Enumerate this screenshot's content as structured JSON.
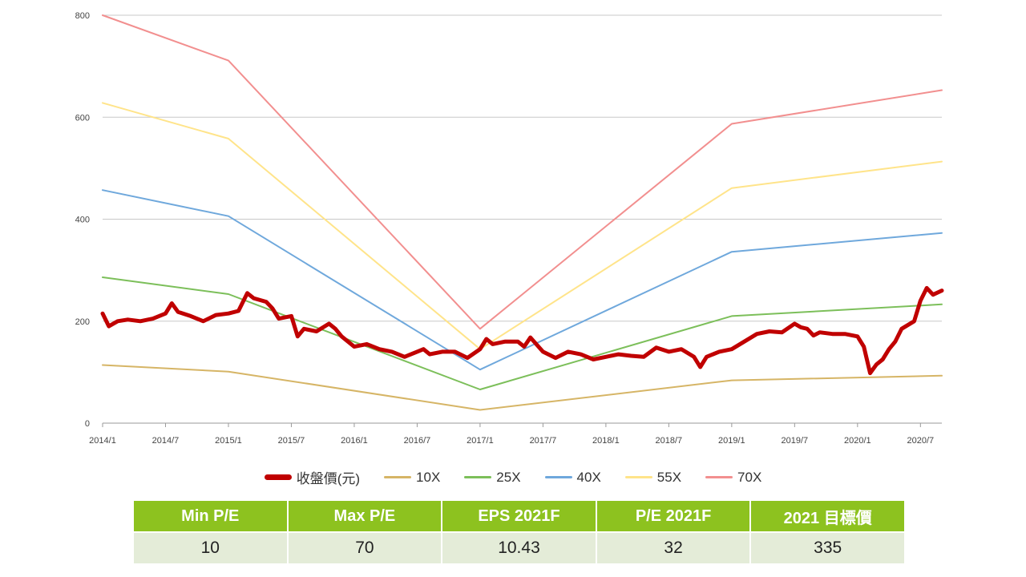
{
  "chart_data": {
    "type": "line",
    "x_ticks": [
      "2014/1",
      "2014/7",
      "2015/1",
      "2015/7",
      "2016/1",
      "2016/7",
      "2017/1",
      "2017/7",
      "2018/1",
      "2018/7",
      "2019/1",
      "2019/7",
      "2020/1",
      "2020/7"
    ],
    "y_ticks": [
      0,
      200,
      400,
      600,
      800
    ],
    "ylim": [
      0,
      800
    ],
    "xlim": [
      2014.0,
      2020.67
    ],
    "grid": true,
    "legend_position": "bottom",
    "series": [
      {
        "name": "收盤價(元)",
        "color": "#c00000",
        "points": [
          [
            2014.0,
            215
          ],
          [
            2014.05,
            190
          ],
          [
            2014.12,
            200
          ],
          [
            2014.2,
            203
          ],
          [
            2014.3,
            200
          ],
          [
            2014.4,
            205
          ],
          [
            2014.5,
            215
          ],
          [
            2014.55,
            235
          ],
          [
            2014.6,
            218
          ],
          [
            2014.7,
            210
          ],
          [
            2014.8,
            200
          ],
          [
            2014.9,
            212
          ],
          [
            2015.0,
            215
          ],
          [
            2015.08,
            220
          ],
          [
            2015.15,
            255
          ],
          [
            2015.2,
            245
          ],
          [
            2015.3,
            238
          ],
          [
            2015.35,
            225
          ],
          [
            2015.4,
            205
          ],
          [
            2015.5,
            210
          ],
          [
            2015.55,
            170
          ],
          [
            2015.6,
            185
          ],
          [
            2015.7,
            180
          ],
          [
            2015.8,
            195
          ],
          [
            2015.85,
            185
          ],
          [
            2015.9,
            170
          ],
          [
            2016.0,
            150
          ],
          [
            2016.1,
            155
          ],
          [
            2016.2,
            145
          ],
          [
            2016.3,
            140
          ],
          [
            2016.4,
            130
          ],
          [
            2016.5,
            140
          ],
          [
            2016.55,
            145
          ],
          [
            2016.6,
            135
          ],
          [
            2016.7,
            140
          ],
          [
            2016.8,
            140
          ],
          [
            2016.9,
            128
          ],
          [
            2017.0,
            145
          ],
          [
            2017.05,
            165
          ],
          [
            2017.1,
            155
          ],
          [
            2017.2,
            160
          ],
          [
            2017.3,
            160
          ],
          [
            2017.35,
            150
          ],
          [
            2017.4,
            168
          ],
          [
            2017.5,
            140
          ],
          [
            2017.6,
            128
          ],
          [
            2017.7,
            140
          ],
          [
            2017.8,
            135
          ],
          [
            2017.9,
            125
          ],
          [
            2018.0,
            130
          ],
          [
            2018.1,
            135
          ],
          [
            2018.2,
            132
          ],
          [
            2018.3,
            130
          ],
          [
            2018.4,
            148
          ],
          [
            2018.5,
            140
          ],
          [
            2018.6,
            145
          ],
          [
            2018.7,
            130
          ],
          [
            2018.75,
            110
          ],
          [
            2018.8,
            130
          ],
          [
            2018.9,
            140
          ],
          [
            2019.0,
            145
          ],
          [
            2019.1,
            160
          ],
          [
            2019.2,
            175
          ],
          [
            2019.3,
            180
          ],
          [
            2019.4,
            178
          ],
          [
            2019.5,
            195
          ],
          [
            2019.55,
            188
          ],
          [
            2019.6,
            185
          ],
          [
            2019.65,
            172
          ],
          [
            2019.7,
            178
          ],
          [
            2019.8,
            175
          ],
          [
            2019.9,
            175
          ],
          [
            2020.0,
            170
          ],
          [
            2020.05,
            150
          ],
          [
            2020.1,
            98
          ],
          [
            2020.15,
            115
          ],
          [
            2020.2,
            125
          ],
          [
            2020.25,
            145
          ],
          [
            2020.3,
            160
          ],
          [
            2020.35,
            185
          ],
          [
            2020.45,
            200
          ],
          [
            2020.5,
            240
          ],
          [
            2020.55,
            265
          ],
          [
            2020.6,
            252
          ],
          [
            2020.67,
            260
          ]
        ]
      },
      {
        "name": "10X",
        "color": "#d6b566",
        "points": [
          [
            2014.0,
            114
          ],
          [
            2015.0,
            101
          ],
          [
            2017.0,
            26
          ],
          [
            2019.0,
            84
          ],
          [
            2020.67,
            93
          ]
        ]
      },
      {
        "name": "25X",
        "color": "#7cbf5a",
        "points": [
          [
            2014.0,
            286
          ],
          [
            2015.0,
            253
          ],
          [
            2017.0,
            66
          ],
          [
            2019.0,
            210
          ],
          [
            2020.67,
            233
          ]
        ]
      },
      {
        "name": "40X",
        "color": "#6fa8dc",
        "points": [
          [
            2014.0,
            457
          ],
          [
            2015.0,
            406
          ],
          [
            2017.0,
            105
          ],
          [
            2019.0,
            336
          ],
          [
            2020.67,
            373
          ]
        ]
      },
      {
        "name": "55X",
        "color": "#ffe48a",
        "points": [
          [
            2014.0,
            628
          ],
          [
            2015.0,
            558
          ],
          [
            2017.0,
            145
          ],
          [
            2019.0,
            461
          ],
          [
            2020.67,
            513
          ]
        ]
      },
      {
        "name": "70X",
        "color": "#f28f8f",
        "points": [
          [
            2014.0,
            800
          ],
          [
            2015.0,
            711
          ],
          [
            2017.0,
            185
          ],
          [
            2019.0,
            587
          ],
          [
            2020.67,
            653
          ]
        ]
      }
    ]
  },
  "legend": [
    {
      "label": "收盤價(元)",
      "color": "#c00000"
    },
    {
      "label": "10X",
      "color": "#d6b566"
    },
    {
      "label": "25X",
      "color": "#7cbf5a"
    },
    {
      "label": "40X",
      "color": "#6fa8dc"
    },
    {
      "label": "55X",
      "color": "#ffe48a"
    },
    {
      "label": "70X",
      "color": "#f28f8f"
    }
  ],
  "table": {
    "headers": [
      "Min P/E",
      "Max P/E",
      "EPS 2021F",
      "P/E 2021F",
      "2021 目標價"
    ],
    "values": [
      "10",
      "70",
      "10.43",
      "32",
      "335"
    ]
  }
}
